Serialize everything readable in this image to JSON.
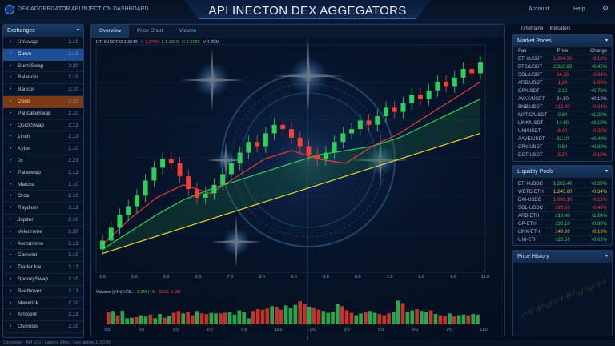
{
  "header": {
    "brand": "DEX AGGREGATOR API INJECTION DASHBOARD",
    "title": "API INECTON DEX AGGEGATORS",
    "right_items": [
      "Account",
      "Help"
    ],
    "settings_icon": "gear-icon"
  },
  "sidebar": {
    "title": "Exchanges",
    "items": [
      {
        "label": "Uniswap",
        "value": "2.10"
      },
      {
        "label": "Curve",
        "value": "2.13",
        "state": "selected"
      },
      {
        "label": "SushiSwap",
        "value": "2.20"
      },
      {
        "label": "Balancer",
        "value": "2.10"
      },
      {
        "label": "Bancor",
        "value": "2.10"
      },
      {
        "label": "Dodo",
        "value": "2.20",
        "state": "highlight"
      },
      {
        "label": "PancakeSwap",
        "value": "2.10"
      },
      {
        "label": "QuickSwap",
        "value": "2.13"
      },
      {
        "label": "1inch",
        "value": "2.13"
      },
      {
        "label": "Kyber",
        "value": "2.10"
      },
      {
        "label": "0x",
        "value": "2.23"
      },
      {
        "label": "Paraswap",
        "value": "2.13"
      },
      {
        "label": "Matcha",
        "value": "2.10"
      },
      {
        "label": "Orca",
        "value": "2.10"
      },
      {
        "label": "Raydium",
        "value": "2.13"
      },
      {
        "label": "Jupiter",
        "value": "2.10"
      },
      {
        "label": "Velodrome",
        "value": "2.20"
      },
      {
        "label": "Aerodrome",
        "value": "2.13"
      },
      {
        "label": "Camelot",
        "value": "2.10"
      },
      {
        "label": "TraderJoe",
        "value": "2.13"
      },
      {
        "label": "SpookySwap",
        "value": "2.10"
      },
      {
        "label": "Beethoven",
        "value": "2.13"
      },
      {
        "label": "Maverick",
        "value": "2.10"
      },
      {
        "label": "Ambient",
        "value": "2.13"
      },
      {
        "label": "Osmosis",
        "value": "2.10"
      }
    ]
  },
  "main": {
    "tabs": [
      "Overview",
      "Price Chart",
      "Volume"
    ],
    "right_tabs": [
      "Timeframe",
      "Indicators"
    ],
    "chart_legend": [
      {
        "text": "ETH/USDT  O 1.2540",
        "color": "#b9c8dc"
      },
      {
        "text": "H 1.2790",
        "color": "#f0403a"
      },
      {
        "text": "L 1.2310",
        "color": "#34d05a"
      },
      {
        "text": "C 1.2720",
        "color": "#34d05a"
      },
      {
        "text": "V 4.20M",
        "color": "#b9c8dc"
      }
    ],
    "volume_legend": [
      {
        "text": "Volume (24h)  VOL:",
        "color": "#b9c8dc"
      },
      {
        "text": "1.2M (+4)",
        "color": "#34d05a"
      },
      {
        "text": "SELL 0.8M",
        "color": "#f0403a"
      }
    ]
  },
  "chart_data": [
    {
      "type": "candlestick",
      "title": "",
      "x_ticks": [
        "1:0",
        "5:0",
        "5:0",
        "6:0",
        "7:0",
        "8:0",
        "8:0",
        "9:0",
        "9:0",
        "1:0",
        "5:0",
        "6:0",
        "11:0"
      ],
      "y_ticks_right": [
        "",
        "",
        "",
        "",
        "",
        "",
        ""
      ],
      "ylim": [
        0,
        100
      ],
      "open": [
        10,
        14,
        20,
        26,
        30,
        35,
        42,
        48,
        52,
        50,
        44,
        38,
        34,
        36,
        40,
        45,
        50,
        55,
        60,
        58,
        64,
        68,
        66,
        62,
        58,
        54,
        52,
        55,
        60,
        64,
        66,
        70,
        68,
        72,
        76,
        74,
        78,
        82,
        80,
        84,
        88,
        86,
        90,
        94,
        92
      ],
      "close": [
        14,
        20,
        26,
        30,
        35,
        42,
        48,
        52,
        50,
        44,
        38,
        34,
        36,
        40,
        45,
        50,
        55,
        60,
        58,
        64,
        68,
        66,
        62,
        58,
        54,
        52,
        55,
        60,
        64,
        66,
        70,
        68,
        72,
        76,
        74,
        78,
        82,
        80,
        84,
        88,
        86,
        90,
        94,
        92,
        97
      ],
      "moving_averages": [
        {
          "color": "#e8d23a",
          "values": [
            8,
            12,
            16,
            20,
            24,
            28,
            32,
            36,
            40,
            44,
            48,
            52,
            56,
            60,
            64
          ]
        },
        {
          "color": "#2fd05a",
          "values": [
            10,
            18,
            26,
            33,
            38,
            42,
            46,
            50,
            54,
            56,
            58,
            62,
            68,
            74,
            80
          ]
        },
        {
          "color": "#e0403a",
          "values": [
            12,
            24,
            34,
            40,
            36,
            44,
            52,
            56,
            52,
            50,
            58,
            64,
            72,
            80,
            88
          ]
        }
      ],
      "up_color": "#2fd05a",
      "down_color": "#f0403a"
    },
    {
      "type": "bar",
      "title": "",
      "x_ticks": [
        "0:0",
        "0:0",
        "0:0",
        "0:0",
        "0:0",
        "10:0",
        "0:0",
        "0:0",
        "0:0",
        "0:0",
        "0:0",
        "11:0"
      ],
      "values": [
        40,
        44,
        30,
        45,
        20,
        22,
        24,
        30,
        26,
        32,
        20,
        34,
        22,
        28,
        38,
        44,
        36,
        42,
        30,
        44,
        36,
        34,
        38,
        36,
        36,
        38,
        40,
        32,
        46,
        40,
        20,
        44,
        50,
        48,
        52,
        60,
        58,
        48,
        62,
        54,
        64,
        76,
        66,
        58,
        56,
        48,
        44,
        38,
        42,
        68,
        60,
        46,
        38,
        30,
        36,
        42,
        44,
        38,
        34,
        30,
        36,
        40,
        78,
        70,
        42,
        46,
        50,
        44,
        40,
        46,
        34,
        30,
        28,
        36,
        26,
        30,
        32,
        30,
        34,
        32
      ],
      "up": [
        0,
        1,
        0,
        1,
        1,
        1,
        0,
        1,
        1,
        0,
        1,
        1,
        0,
        1,
        0,
        0,
        1,
        0,
        0,
        1,
        0,
        0,
        1,
        1,
        0,
        0,
        1,
        1,
        1,
        1,
        1,
        0,
        0,
        0,
        0,
        1,
        0,
        0,
        1,
        1,
        1,
        0,
        0,
        1,
        0,
        0,
        1,
        1,
        1,
        1,
        0,
        0,
        0,
        1,
        1,
        0,
        1,
        1,
        0,
        0,
        0,
        1,
        1,
        0,
        1,
        1,
        0,
        1,
        1,
        0,
        1,
        0,
        0,
        1,
        0,
        1,
        1,
        0,
        1,
        1
      ],
      "ylim": [
        0,
        100
      ]
    },
    {
      "type": "candlestick",
      "title": "",
      "close": [
        20,
        24,
        22,
        28,
        30,
        26,
        34,
        38,
        32,
        36,
        42,
        40,
        46,
        44,
        50,
        48,
        56,
        52,
        60,
        58,
        54,
        62,
        66,
        60,
        64,
        70,
        68,
        74,
        72,
        80
      ],
      "ylim": [
        0,
        100
      ]
    }
  ],
  "right_panels": [
    {
      "title": "Market Prices",
      "columns": [
        "Pair",
        "Price",
        "Change"
      ],
      "rows": [
        [
          "ETH/USDT",
          "1,204.50",
          "-0.12%",
          "r"
        ],
        [
          "BTC/USDT",
          "2,310.60",
          "+0.45%",
          "g"
        ],
        [
          "SOL/USDT",
          "84.20",
          "-2.34%",
          "r"
        ],
        [
          "ARB/USDT",
          "1.24",
          "-1.08%",
          "r"
        ],
        [
          "OP/USDT",
          "2.10",
          "+0.76%",
          "g"
        ],
        [
          "AVAX/USDT",
          "34.50",
          "+0.12%",
          "w"
        ],
        [
          "BNB/USDT",
          "312.40",
          "-0.34%",
          "r"
        ],
        [
          "MATIC/USDT",
          "0.84",
          "+1.20%",
          "g"
        ],
        [
          "LINK/USDT",
          "14.60",
          "+2.10%",
          "g"
        ],
        [
          "UNI/USDT",
          "6.40",
          "-0.22%",
          "r"
        ],
        [
          "AAVE/USDT",
          "92.10",
          "+0.40%",
          "g"
        ],
        [
          "CRV/USDT",
          "0.54",
          "+0.30%",
          "g"
        ],
        [
          "DOT/USDT",
          "5.20",
          "-0.10%",
          "r"
        ]
      ]
    },
    {
      "title": "Liquidity Pools",
      "columns": [],
      "rows": [
        [
          "ETH-USDC",
          "1,203.40",
          "+0.20%",
          "g"
        ],
        [
          "WBTC-ETH",
          "1,240.60",
          "+0.34%",
          "y"
        ],
        [
          "DAI-USDC",
          "1,000.10",
          "-0.12%",
          "r"
        ],
        [
          "SOL-USDC",
          "320.50",
          "-0.40%",
          "r"
        ],
        [
          "ARB-ETH",
          "210.40",
          "+1.24%",
          "g"
        ],
        [
          "OP-ETH",
          "230.10",
          "+0.80%",
          "g"
        ],
        [
          "LINK-ETH",
          "140.20",
          "+0.10%",
          "y"
        ],
        [
          "UNI-ETH",
          "120.50",
          "+0.62%",
          "g"
        ]
      ]
    },
    {
      "title": "Price History"
    }
  ],
  "status": "Connected · API v2.1 · Latency 24ms · Last update 11:00:00"
}
